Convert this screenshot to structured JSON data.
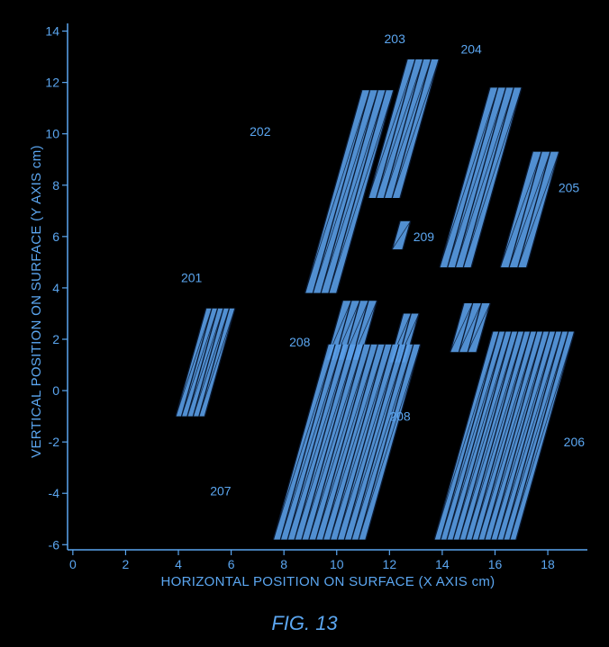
{
  "colors": {
    "background": "#000000",
    "ink": "#5ba6f0",
    "fill": "#5a9fe8",
    "line": "#0a1a33"
  },
  "caption": "FIG. 13",
  "chart_data": {
    "type": "scatter",
    "xlabel": "HORIZONTAL POSITION ON SURFACE (X AXIS cm)",
    "ylabel": "VERTICAL POSITION ON SURFACE (Y AXIS cm)",
    "xlim": [
      -0.2,
      19.5
    ],
    "ylim": [
      -6.2,
      14.3
    ],
    "xticks": [
      0,
      2,
      4,
      6,
      8,
      10,
      12,
      14,
      16,
      18
    ],
    "yticks": [
      -6,
      -4,
      -2,
      0,
      2,
      4,
      6,
      8,
      10,
      12,
      14
    ],
    "grid": false,
    "regions": [
      {
        "x": [
          3.9,
          5.0
        ],
        "y": [
          -1.0,
          3.2
        ],
        "stripes": 5
      },
      {
        "x": [
          8.8,
          10.0
        ],
        "y": [
          3.8,
          11.7
        ],
        "stripes": 4
      },
      {
        "x": [
          11.2,
          12.4
        ],
        "y": [
          7.5,
          12.9
        ],
        "stripes": 4
      },
      {
        "x": [
          13.9,
          15.1
        ],
        "y": [
          4.8,
          11.8
        ],
        "stripes": 4
      },
      {
        "x": [
          16.2,
          17.2
        ],
        "y": [
          4.8,
          9.3
        ],
        "stripes": 3
      },
      {
        "x": [
          12.1,
          12.5
        ],
        "y": [
          5.5,
          6.6
        ],
        "stripes": 1
      },
      {
        "x": [
          9.6,
          10.9
        ],
        "y": [
          1.2,
          3.5
        ],
        "stripes": 4
      },
      {
        "x": [
          12.0,
          12.6
        ],
        "y": [
          1.1,
          3.0
        ],
        "stripes": 2
      },
      {
        "x": [
          14.3,
          15.3
        ],
        "y": [
          1.5,
          3.4
        ],
        "stripes": 3
      },
      {
        "x": [
          7.6,
          11.1
        ],
        "y": [
          -5.8,
          1.8
        ],
        "stripes": 13
      },
      {
        "x": [
          13.7,
          16.8
        ],
        "y": [
          -5.8,
          2.3
        ],
        "stripes": 13
      }
    ],
    "annotations": [
      {
        "label": "201",
        "x": 4.5,
        "y": 4.4
      },
      {
        "label": "202",
        "x": 7.1,
        "y": 10.1
      },
      {
        "label": "203",
        "x": 12.2,
        "y": 13.7
      },
      {
        "label": "204",
        "x": 15.1,
        "y": 13.3
      },
      {
        "label": "205",
        "x": 18.8,
        "y": 7.9
      },
      {
        "label": "206",
        "x": 19.0,
        "y": -2.0
      },
      {
        "label": "207",
        "x": 5.6,
        "y": -3.9
      },
      {
        "label": "208",
        "x": 8.6,
        "y": 1.9
      },
      {
        "label": "208",
        "x": 12.4,
        "y": -1.0
      },
      {
        "label": "209",
        "x": 13.3,
        "y": 6.0
      }
    ]
  }
}
